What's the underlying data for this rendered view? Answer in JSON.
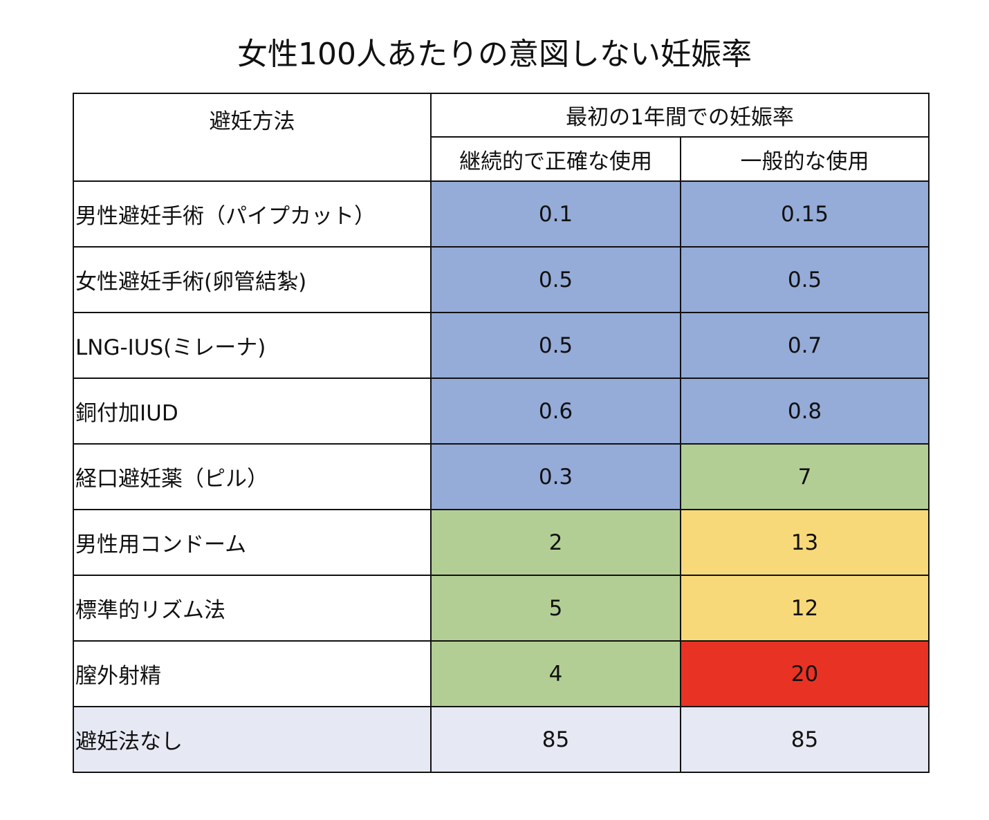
{
  "colors": {
    "blue": "#95abd8",
    "green": "#b3ce94",
    "yellow": "#f8d97a",
    "red": "#e83324",
    "grey": "#e6e9f3",
    "white": "#ffffff"
  },
  "chart_data": {
    "type": "table",
    "title": "女性100人あたりの意図しない妊娠率",
    "header": {
      "method": "避妊方法",
      "group": "最初の1年間での妊娠率",
      "columns": [
        "継続的で正確な使用",
        "一般的な使用"
      ]
    },
    "rows": [
      {
        "label": "男性避妊手術（パイプカット）",
        "values": [
          "0.1",
          "0.15"
        ],
        "colors": [
          "blue",
          "blue"
        ],
        "label_color": "white"
      },
      {
        "label": "女性避妊手術(卵管結紮)",
        "values": [
          "0.5",
          "0.5"
        ],
        "colors": [
          "blue",
          "blue"
        ],
        "label_color": "white"
      },
      {
        "label": "LNG-IUS(ミレーナ)",
        "values": [
          "0.5",
          "0.7"
        ],
        "colors": [
          "blue",
          "blue"
        ],
        "label_color": "white"
      },
      {
        "label": "銅付加IUD",
        "values": [
          "0.6",
          "0.8"
        ],
        "colors": [
          "blue",
          "blue"
        ],
        "label_color": "white"
      },
      {
        "label": "経口避妊薬（ピル）",
        "values": [
          "0.3",
          "7"
        ],
        "colors": [
          "blue",
          "green"
        ],
        "label_color": "white"
      },
      {
        "label": "男性用コンドーム",
        "values": [
          "2",
          "13"
        ],
        "colors": [
          "green",
          "yellow"
        ],
        "label_color": "white"
      },
      {
        "label": "標準的リズム法",
        "values": [
          "5",
          "12"
        ],
        "colors": [
          "green",
          "yellow"
        ],
        "label_color": "white"
      },
      {
        "label": "膣外射精",
        "values": [
          "4",
          "20"
        ],
        "colors": [
          "green",
          "red"
        ],
        "label_color": "white"
      },
      {
        "label": "避妊法なし",
        "values": [
          "85",
          "85"
        ],
        "colors": [
          "grey",
          "grey"
        ],
        "label_color": "grey"
      }
    ]
  }
}
